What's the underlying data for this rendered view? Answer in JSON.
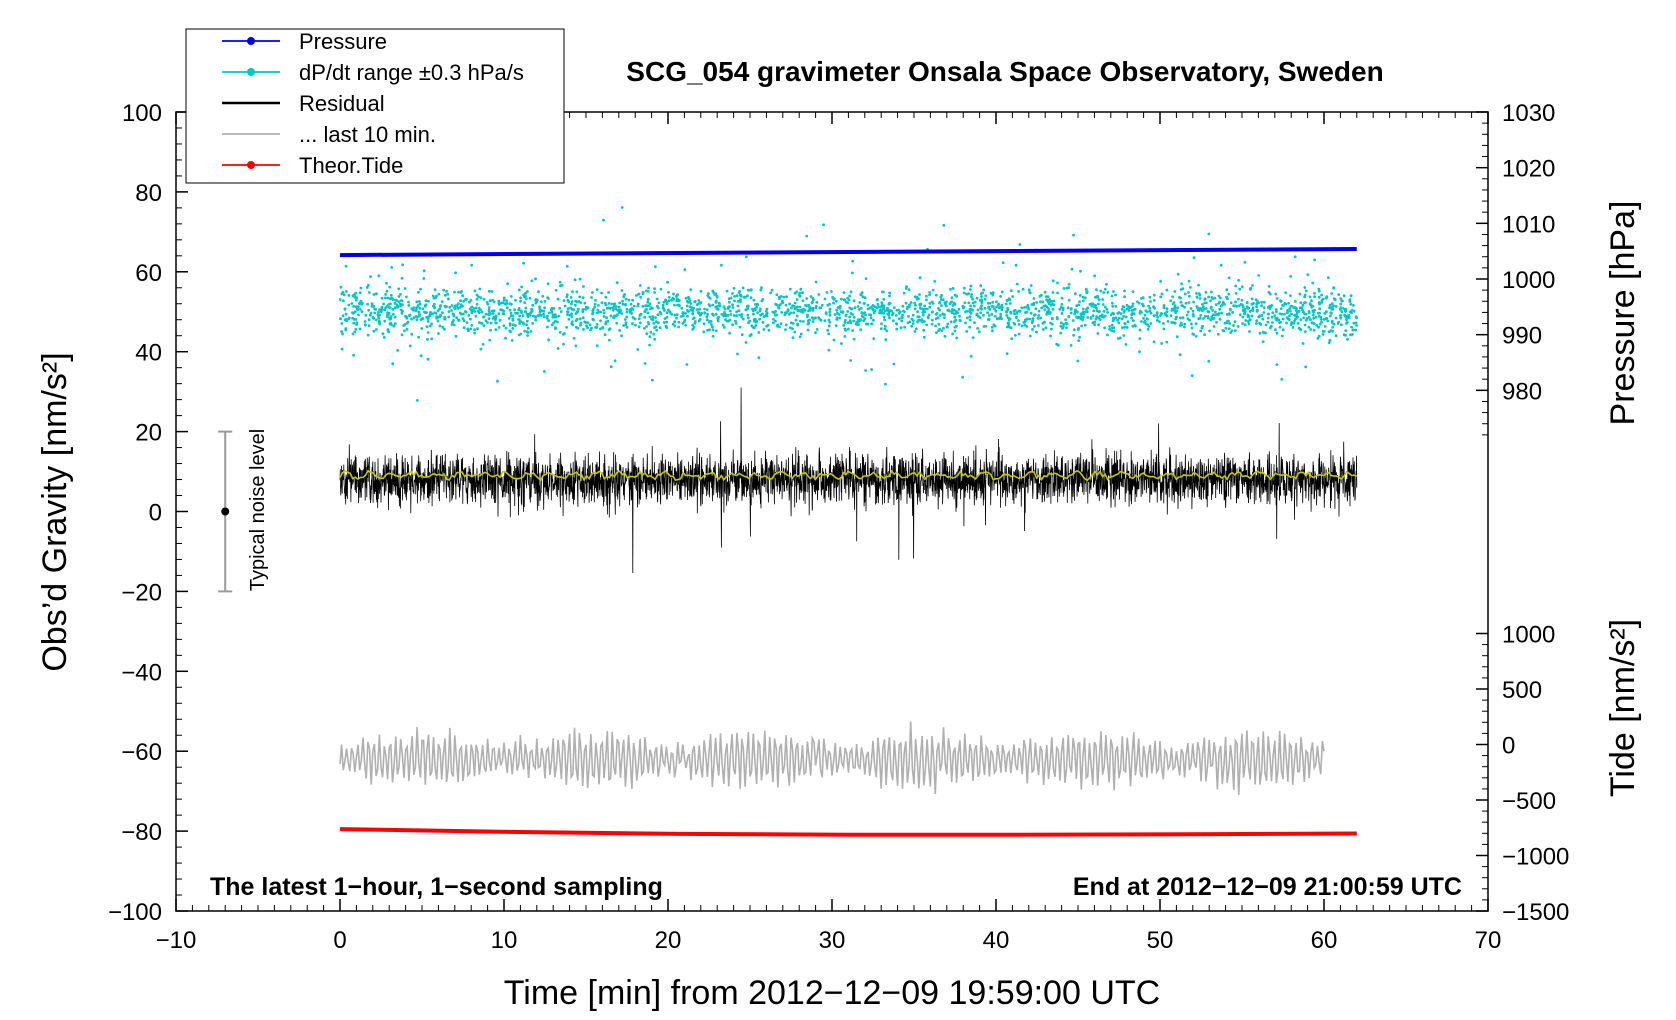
{
  "chart_data": {
    "type": "line",
    "title": "SCG_054 gravimeter Onsala Space Observatory, Sweden",
    "xlabel": "Time [min] from 2012−12−09 19:59:00 UTC",
    "ylabel_left": "Obs’d Gravity [nm/s²]",
    "ylabel_right_top": "Pressure [hPa]",
    "ylabel_right_bottom": "Tide [nm/s²]",
    "xlim": [
      -10,
      70
    ],
    "ylim": [
      -100,
      100
    ],
    "x_ticks": [
      "−10",
      "0",
      "10",
      "20",
      "30",
      "40",
      "50",
      "60",
      "70"
    ],
    "y_ticks": [
      "−100",
      "−80",
      "−60",
      "−40",
      "−20",
      "0",
      "20",
      "40",
      "60",
      "80",
      "100"
    ],
    "pressure_axis": {
      "ticks": [
        "980",
        "990",
        "1000",
        "1010",
        "1020",
        "1030"
      ],
      "range": [
        970,
        1030
      ]
    },
    "tide_axis": {
      "ticks": [
        "−1500",
        "−1000",
        "−500",
        "0",
        "500",
        "1000"
      ],
      "range": [
        -1500,
        1500
      ]
    },
    "legend": [
      {
        "label": "Pressure",
        "color": "#0000ee",
        "style": "line-dot"
      },
      {
        "label": "dP/dt range ±0.3 hPa/s",
        "color": "#00c8c8",
        "style": "line-dot"
      },
      {
        "label": "Residual",
        "color": "#000000",
        "style": "line"
      },
      {
        "label": "... last 10 min.",
        "color": "#b0b0b0",
        "style": "line"
      },
      {
        "label": "Theor.Tide",
        "color": "#ff0000",
        "style": "line-dot"
      }
    ],
    "notes": {
      "left": "The latest 1−hour, 1−second sampling",
      "right": "End at 2012−12−09 21:00:59 UTC"
    },
    "noise_label": "Typical noise level",
    "noise_bar": {
      "x": -7,
      "center": 0,
      "low": -20,
      "high": 20
    },
    "series": [
      {
        "name": "Pressure",
        "color": "#0000ee",
        "x_range": [
          0,
          62
        ],
        "values_hpa": [
          1004.3,
          1005.4
        ]
      },
      {
        "name": "dP/dt range ±0.3 hPa/s",
        "color": "#00c8c8",
        "x_range": [
          0,
          62
        ],
        "center": 50,
        "spread": 10
      },
      {
        "name": "Residual",
        "color": "#000000",
        "x_range": [
          0,
          62
        ],
        "center": 8,
        "spread": 14
      },
      {
        "name": "Residual smoothed",
        "color": "#c8c800",
        "x_range": [
          0,
          62
        ],
        "center": 9
      },
      {
        "name": "... last 10 min.",
        "color": "#b0b0b0",
        "x_range": [
          0,
          60
        ],
        "center": -62,
        "spread": 10
      },
      {
        "name": "Theor.Tide",
        "color": "#ff0000",
        "x_range": [
          0,
          62
        ],
        "values": [
          -79.5,
          -80.2,
          -80.7,
          -80.9,
          -80.9,
          -80.8,
          -80.6
        ]
      }
    ],
    "colors": {
      "pressure": "#0000ee",
      "dpdt": "#00c8c8",
      "residual": "#000000",
      "smooth": "#c8c800",
      "last10": "#b0b0b0",
      "tide": "#ff0000",
      "noisebar": "#999999"
    }
  }
}
